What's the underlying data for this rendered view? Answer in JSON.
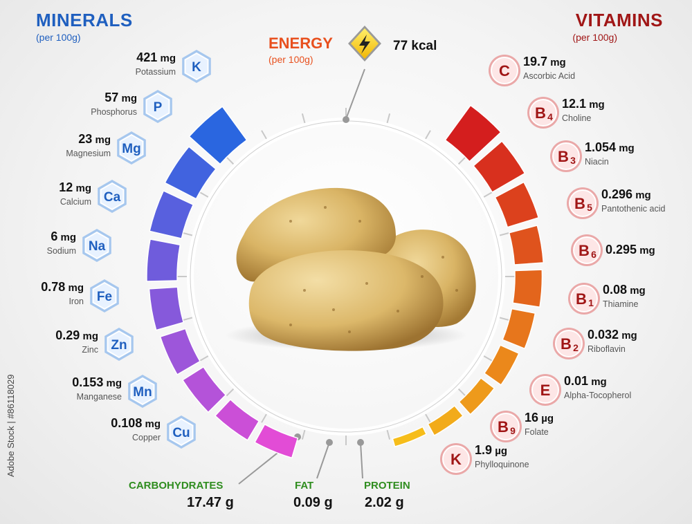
{
  "header": {
    "minerals_title": "MINERALS",
    "minerals_sub": "(per 100g)",
    "vitamins_title": "VITAMINS",
    "vitamins_sub": "(per 100g)",
    "energy_title": "ENERGY",
    "energy_sub": "(per 100g)",
    "energy_value": "77 kcal"
  },
  "minerals": [
    {
      "symbol": "K",
      "value": "421",
      "unit": "mg",
      "name": "Potassium",
      "level": 1.0
    },
    {
      "symbol": "P",
      "value": "57",
      "unit": "mg",
      "name": "Phosphorus",
      "level": 0.78
    },
    {
      "symbol": "Mg",
      "value": "23",
      "unit": "mg",
      "name": "Magnesium",
      "level": 0.7
    },
    {
      "symbol": "Ca",
      "value": "12",
      "unit": "mg",
      "name": "Calcium",
      "level": 0.62
    },
    {
      "symbol": "Na",
      "value": "6",
      "unit": "mg",
      "name": "Sodium",
      "level": 0.55
    },
    {
      "symbol": "Fe",
      "value": "0.78",
      "unit": "mg",
      "name": "Iron",
      "level": 0.48
    },
    {
      "symbol": "Zn",
      "value": "0.29",
      "unit": "mg",
      "name": "Zinc",
      "level": 0.42
    },
    {
      "symbol": "Mn",
      "value": "0.153",
      "unit": "mg",
      "name": "Manganese",
      "level": 0.34
    },
    {
      "symbol": "Cu",
      "value": "0.108",
      "unit": "mg",
      "name": "Copper",
      "level": 0.28
    }
  ],
  "vitamins": [
    {
      "main": "C",
      "subscript": "",
      "value": "19.7",
      "unit": "mg",
      "name": "Ascorbic Acid",
      "level": 1.0
    },
    {
      "main": "B",
      "subscript": "4",
      "value": "12.1",
      "unit": "mg",
      "name": "Choline",
      "level": 0.85
    },
    {
      "main": "B",
      "subscript": "3",
      "value": "1.054",
      "unit": "mg",
      "name": "Niacin",
      "level": 0.7
    },
    {
      "main": "B",
      "subscript": "5",
      "value": "0.296",
      "unit": "mg",
      "name": "Pantothenic acid",
      "level": 0.6
    },
    {
      "main": "B",
      "subscript": "6",
      "value": "0.295",
      "unit": "mg",
      "name": "",
      "level": 0.55
    },
    {
      "main": "B",
      "subscript": "1",
      "value": "0.08",
      "unit": "mg",
      "name": "Thiamine",
      "level": 0.45
    },
    {
      "main": "B",
      "subscript": "2",
      "value": "0.032",
      "unit": "mg",
      "name": "Riboflavin",
      "level": 0.35
    },
    {
      "main": "E",
      "subscript": "",
      "value": "0.01",
      "unit": "mg",
      "name": "Alpha-Tocopherol",
      "level": 0.25
    },
    {
      "main": "B",
      "subscript": "9",
      "value": "16",
      "unit": "µg",
      "name": "Folate",
      "level": 0.14
    },
    {
      "main": "K",
      "subscript": "",
      "value": "1.9",
      "unit": "µg",
      "name": "Phylloquinone",
      "level": 0.0
    }
  ],
  "macros": {
    "carbs_label": "CARBOHYDRATES",
    "carbs_value": "17.47 g",
    "fat_label": "FAT",
    "fat_value": "0.09 g",
    "protein_label": "PROTEIN",
    "protein_value": "2.02 g"
  },
  "stock_text": "Adobe Stock | #86118029",
  "colors": {
    "minerals_title": "#1f5fbf",
    "vitamins_title": "#a01616",
    "energy_title": "#e8501e",
    "macro_label": "#2f8d1f"
  }
}
